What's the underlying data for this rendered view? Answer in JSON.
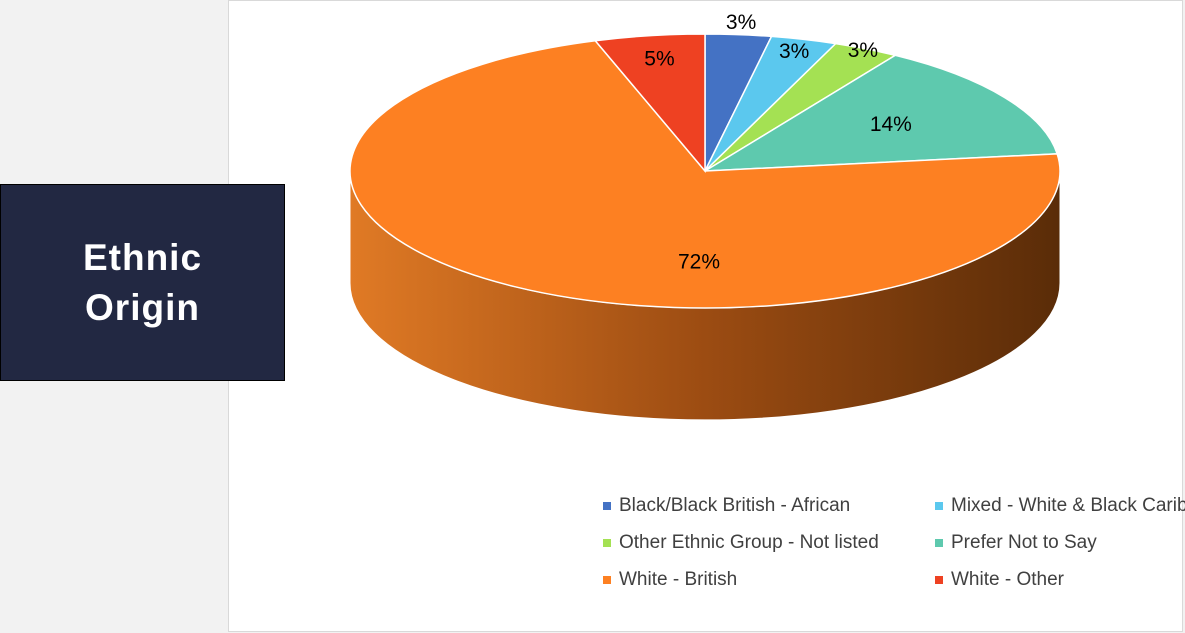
{
  "panel": {
    "title_line1": "Ethnic",
    "title_line2": "Origin"
  },
  "chart_data": {
    "type": "pie",
    "title": "",
    "categories": [
      "Black/Black British - African",
      "Mixed - White & Black Caribbean",
      "Other Ethnic Group - Not listed",
      "Prefer Not to Say",
      "White - British",
      "White - Other"
    ],
    "values": [
      3,
      3,
      3,
      14,
      72,
      5
    ],
    "labels": [
      "3%",
      "3%",
      "3%",
      "14%",
      "72%",
      "5%"
    ],
    "colors": [
      "#4472c4",
      "#5bc8ee",
      "#a4e153",
      "#5ec9ae",
      "#fd8022",
      "#ee4122"
    ],
    "legend_position": "bottom",
    "style": "3d"
  }
}
